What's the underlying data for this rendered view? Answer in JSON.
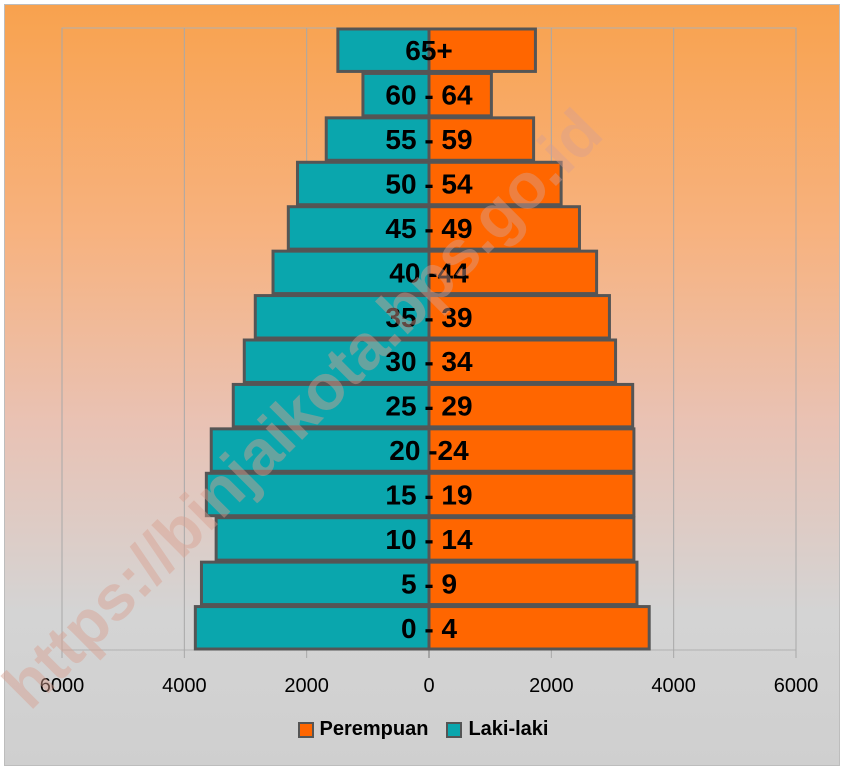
{
  "chart_data": {
    "type": "bar",
    "orientation": "horizontal-population-pyramid",
    "categories": [
      "0 - 4",
      "5 - 9",
      "10 - 14",
      "15 - 19",
      "20 -24",
      "25 - 29",
      "30 - 34",
      "35 - 39",
      "40 -44",
      "45 - 49",
      "50 - 54",
      "55 - 59",
      "60 - 64",
      "65+"
    ],
    "series": [
      {
        "name": "Perempuan",
        "color": "#ff6600",
        "values": [
          3600,
          3400,
          3350,
          3350,
          3350,
          3330,
          3050,
          2950,
          2740,
          2460,
          2160,
          1710,
          1020,
          1740
        ]
      },
      {
        "name": "Laki-laki",
        "color": "#0aa6ad",
        "values": [
          3820,
          3720,
          3480,
          3640,
          3560,
          3200,
          3020,
          2840,
          2550,
          2300,
          2150,
          1680,
          1080,
          1490
        ]
      }
    ],
    "xlim": [
      -6000,
      6000
    ],
    "x_ticks": [
      "6000",
      "4000",
      "2000",
      "0",
      "2000",
      "4000",
      "6000"
    ],
    "legend_position": "bottom",
    "grid": "vertical"
  },
  "watermark": "https://binjaikota.bps.go.id"
}
